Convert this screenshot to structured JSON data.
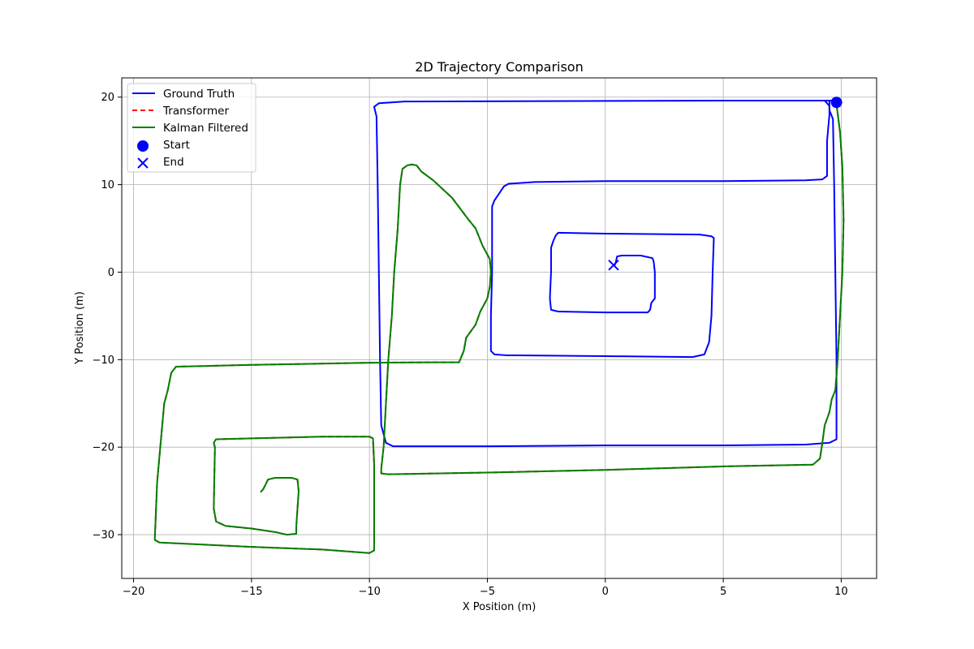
{
  "chart_data": {
    "type": "line",
    "title": "2D Trajectory Comparison",
    "xlabel": "X Position (m)",
    "ylabel": "Y Position (m)",
    "xlim": [
      -20.5,
      11.5
    ],
    "ylim": [
      -35,
      22.2
    ],
    "xticks": [
      -20,
      -15,
      -10,
      -5,
      0,
      5,
      10
    ],
    "yticks": [
      -30,
      -20,
      -10,
      0,
      10,
      20
    ],
    "xtick_labels": [
      "−20",
      "−15",
      "−10",
      "−5",
      "0",
      "5",
      "10"
    ],
    "ytick_labels": [
      "−30",
      "−20",
      "−10",
      "0",
      "10",
      "20"
    ],
    "grid": true,
    "legend_position": "top-left",
    "colors": {
      "ground_truth": "#0000ff",
      "transformer": "#ff0000",
      "kalman": "#008000",
      "marker": "#0000ff"
    },
    "series": [
      {
        "name": "Ground Truth",
        "style": "solid",
        "points": [
          [
            9.8,
            19.5
          ],
          [
            9.6,
            19.6
          ],
          [
            5,
            19.6
          ],
          [
            -8.5,
            19.5
          ],
          [
            -9.6,
            19.3
          ],
          [
            -9.8,
            18.9
          ],
          [
            -9.7,
            17.8
          ],
          [
            -9.65,
            10
          ],
          [
            -9.6,
            0
          ],
          [
            -9.55,
            -10
          ],
          [
            -9.5,
            -17.5
          ],
          [
            -9.3,
            -19.5
          ],
          [
            -9,
            -19.9
          ],
          [
            -5,
            -19.9
          ],
          [
            0,
            -19.8
          ],
          [
            5,
            -19.8
          ],
          [
            8.5,
            -19.7
          ],
          [
            9.5,
            -19.5
          ],
          [
            9.8,
            -19.1
          ],
          [
            9.8,
            -10
          ],
          [
            9.75,
            0
          ],
          [
            9.7,
            10
          ],
          [
            9.65,
            17.5
          ],
          [
            9.5,
            18.5
          ],
          [
            9.5,
            19
          ],
          [
            9.3,
            19.6
          ]
        ],
        "points_b": [
          [
            9.5,
            19.6
          ],
          [
            9.5,
            18
          ],
          [
            9.4,
            15
          ],
          [
            9.4,
            11
          ],
          [
            9.2,
            10.6
          ],
          [
            8.5,
            10.5
          ],
          [
            5,
            10.4
          ],
          [
            0,
            10.4
          ],
          [
            -3,
            10.3
          ],
          [
            -4.1,
            10.1
          ],
          [
            -4.3,
            9.8
          ],
          [
            -4.7,
            8.2
          ],
          [
            -4.8,
            7.5
          ],
          [
            -4.8,
            0
          ],
          [
            -4.85,
            -5
          ],
          [
            -4.85,
            -9
          ],
          [
            -4.7,
            -9.4
          ],
          [
            -4.2,
            -9.5
          ],
          [
            0,
            -9.6
          ],
          [
            3.7,
            -9.7
          ],
          [
            4.2,
            -9.4
          ],
          [
            4.4,
            -8
          ],
          [
            4.5,
            -5
          ],
          [
            4.55,
            0
          ],
          [
            4.6,
            3.9
          ],
          [
            4.5,
            4.1
          ],
          [
            4,
            4.3
          ],
          [
            0,
            4.4
          ],
          [
            -2,
            4.5
          ],
          [
            -2.1,
            4.2
          ],
          [
            -2.2,
            3.6
          ],
          [
            -2.3,
            2.8
          ],
          [
            -2.3,
            0
          ],
          [
            -2.35,
            -3
          ],
          [
            -2.3,
            -4.3
          ],
          [
            -2,
            -4.5
          ],
          [
            0,
            -4.6
          ],
          [
            1.8,
            -4.6
          ],
          [
            1.9,
            -4.3
          ],
          [
            1.95,
            -3.5
          ],
          [
            2.1,
            -3
          ],
          [
            2.1,
            0
          ],
          [
            2.05,
            1.2
          ],
          [
            2,
            1.6
          ],
          [
            1.5,
            1.9
          ],
          [
            0.7,
            1.9
          ],
          [
            0.5,
            1.8
          ],
          [
            0.45,
            1.2
          ],
          [
            0.4,
            0.8
          ]
        ]
      },
      {
        "name": "Transformer",
        "style": "dashed",
        "points": [
          [
            9.8,
            19.2
          ],
          [
            9.95,
            16
          ],
          [
            10.05,
            12
          ],
          [
            10.1,
            6
          ],
          [
            10.05,
            0
          ],
          [
            9.95,
            -5
          ],
          [
            9.85,
            -10
          ],
          [
            9.75,
            -13.5
          ],
          [
            9.6,
            -14.5
          ],
          [
            9.5,
            -16
          ],
          [
            9.3,
            -17.5
          ],
          [
            9.2,
            -19.5
          ],
          [
            9.1,
            -21.3
          ],
          [
            8.8,
            -22
          ],
          [
            5,
            -22.2
          ],
          [
            0,
            -22.6
          ],
          [
            -5,
            -22.9
          ],
          [
            -9.2,
            -23.1
          ],
          [
            -9.5,
            -23
          ],
          [
            -9.5,
            -22.5
          ],
          [
            -9.4,
            -20
          ],
          [
            -9.3,
            -15
          ],
          [
            -9.2,
            -10
          ],
          [
            -9.05,
            -5
          ],
          [
            -8.95,
            0
          ],
          [
            -8.8,
            5
          ],
          [
            -8.7,
            10
          ],
          [
            -8.6,
            11.8
          ],
          [
            -8.4,
            12.2
          ],
          [
            -8.2,
            12.3
          ],
          [
            -8,
            12.2
          ],
          [
            -7.8,
            11.5
          ],
          [
            -7.3,
            10.5
          ],
          [
            -6.5,
            8.5
          ],
          [
            -5.8,
            6
          ],
          [
            -5.5,
            5
          ],
          [
            -5.2,
            3
          ],
          [
            -4.9,
            1.5
          ],
          [
            -4.85,
            0
          ],
          [
            -4.9,
            -1.7
          ],
          [
            -5,
            -3
          ],
          [
            -5.3,
            -4.5
          ],
          [
            -5.5,
            -6
          ],
          [
            -5.9,
            -7.5
          ],
          [
            -6,
            -9
          ],
          [
            -6.2,
            -10.3
          ],
          [
            -7,
            -10.3
          ],
          [
            -10,
            -10.35
          ],
          [
            -15,
            -10.6
          ],
          [
            -18.2,
            -10.8
          ],
          [
            -18.4,
            -11.5
          ],
          [
            -18.55,
            -13.5
          ],
          [
            -18.7,
            -15
          ],
          [
            -18.8,
            -18
          ],
          [
            -19,
            -24
          ],
          [
            -19.1,
            -30.6
          ],
          [
            -18.9,
            -30.9
          ],
          [
            -15,
            -31.4
          ],
          [
            -12,
            -31.7
          ],
          [
            -10,
            -32.1
          ],
          [
            -9.8,
            -31.8
          ],
          [
            -9.8,
            -30
          ],
          [
            -9.8,
            -22
          ],
          [
            -9.85,
            -19
          ],
          [
            -10,
            -18.8
          ],
          [
            -12,
            -18.8
          ],
          [
            -15,
            -19
          ],
          [
            -16.5,
            -19.1
          ],
          [
            -16.6,
            -19.5
          ],
          [
            -16.55,
            -20
          ],
          [
            -16.6,
            -27
          ],
          [
            -16.5,
            -28.5
          ],
          [
            -16.1,
            -29
          ],
          [
            -15,
            -29.3
          ],
          [
            -14,
            -29.7
          ],
          [
            -13.5,
            -30
          ],
          [
            -13.1,
            -29.9
          ],
          [
            -13.1,
            -29
          ],
          [
            -13.05,
            -27
          ],
          [
            -13,
            -25
          ],
          [
            -13.05,
            -23.7
          ],
          [
            -13.3,
            -23.5
          ],
          [
            -14,
            -23.5
          ],
          [
            -14.3,
            -23.7
          ],
          [
            -14.5,
            -24.8
          ],
          [
            -14.6,
            -25.1
          ]
        ]
      },
      {
        "name": "Kalman Filtered",
        "style": "solid",
        "points": [
          [
            9.8,
            19.2
          ],
          [
            9.95,
            16
          ],
          [
            10.05,
            12
          ],
          [
            10.1,
            6
          ],
          [
            10.05,
            0
          ],
          [
            9.95,
            -5
          ],
          [
            9.85,
            -10
          ],
          [
            9.75,
            -13.5
          ],
          [
            9.6,
            -14.5
          ],
          [
            9.5,
            -16
          ],
          [
            9.3,
            -17.5
          ],
          [
            9.2,
            -19.5
          ],
          [
            9.1,
            -21.3
          ],
          [
            8.8,
            -22
          ],
          [
            5,
            -22.2
          ],
          [
            0,
            -22.6
          ],
          [
            -5,
            -22.9
          ],
          [
            -9.2,
            -23.1
          ],
          [
            -9.5,
            -23
          ],
          [
            -9.5,
            -22.5
          ],
          [
            -9.4,
            -20
          ],
          [
            -9.3,
            -15
          ],
          [
            -9.2,
            -10
          ],
          [
            -9.05,
            -5
          ],
          [
            -8.95,
            0
          ],
          [
            -8.8,
            5
          ],
          [
            -8.7,
            10
          ],
          [
            -8.6,
            11.8
          ],
          [
            -8.4,
            12.2
          ],
          [
            -8.2,
            12.3
          ],
          [
            -8,
            12.2
          ],
          [
            -7.8,
            11.5
          ],
          [
            -7.3,
            10.5
          ],
          [
            -6.5,
            8.5
          ],
          [
            -5.8,
            6
          ],
          [
            -5.5,
            5
          ],
          [
            -5.2,
            3
          ],
          [
            -4.9,
            1.5
          ],
          [
            -4.85,
            0
          ],
          [
            -4.9,
            -1.7
          ],
          [
            -5,
            -3
          ],
          [
            -5.3,
            -4.5
          ],
          [
            -5.5,
            -6
          ],
          [
            -5.9,
            -7.5
          ],
          [
            -6,
            -9
          ],
          [
            -6.2,
            -10.3
          ],
          [
            -7,
            -10.3
          ],
          [
            -10,
            -10.35
          ],
          [
            -15,
            -10.6
          ],
          [
            -18.2,
            -10.8
          ],
          [
            -18.4,
            -11.5
          ],
          [
            -18.55,
            -13.5
          ],
          [
            -18.7,
            -15
          ],
          [
            -18.8,
            -18
          ],
          [
            -19,
            -24
          ],
          [
            -19.1,
            -30.6
          ],
          [
            -18.9,
            -30.9
          ],
          [
            -15,
            -31.4
          ],
          [
            -12,
            -31.7
          ],
          [
            -10,
            -32.1
          ],
          [
            -9.8,
            -31.8
          ],
          [
            -9.8,
            -30
          ],
          [
            -9.8,
            -22
          ],
          [
            -9.85,
            -19
          ],
          [
            -10,
            -18.8
          ],
          [
            -12,
            -18.8
          ],
          [
            -15,
            -19
          ],
          [
            -16.5,
            -19.1
          ],
          [
            -16.6,
            -19.5
          ],
          [
            -16.55,
            -20
          ],
          [
            -16.6,
            -27
          ],
          [
            -16.5,
            -28.5
          ],
          [
            -16.1,
            -29
          ],
          [
            -15,
            -29.3
          ],
          [
            -14,
            -29.7
          ],
          [
            -13.5,
            -30
          ],
          [
            -13.1,
            -29.9
          ],
          [
            -13.1,
            -29
          ],
          [
            -13.05,
            -27
          ],
          [
            -13,
            -25
          ],
          [
            -13.05,
            -23.7
          ],
          [
            -13.3,
            -23.5
          ],
          [
            -14,
            -23.5
          ],
          [
            -14.3,
            -23.7
          ],
          [
            -14.5,
            -24.8
          ],
          [
            -14.6,
            -25.1
          ]
        ]
      }
    ],
    "markers": [
      {
        "name": "Start",
        "shape": "circle",
        "x": 9.8,
        "y": 19.4
      },
      {
        "name": "End",
        "shape": "x",
        "x": 0.35,
        "y": 0.8
      }
    ],
    "legend": [
      {
        "label": "Ground Truth",
        "kind": "solid",
        "color_key": "ground_truth"
      },
      {
        "label": "Transformer",
        "kind": "dashed",
        "color_key": "transformer"
      },
      {
        "label": "Kalman Filtered",
        "kind": "solid",
        "color_key": "kalman"
      },
      {
        "label": "Start",
        "kind": "circle",
        "color_key": "marker"
      },
      {
        "label": "End",
        "kind": "x",
        "color_key": "marker"
      }
    ]
  }
}
